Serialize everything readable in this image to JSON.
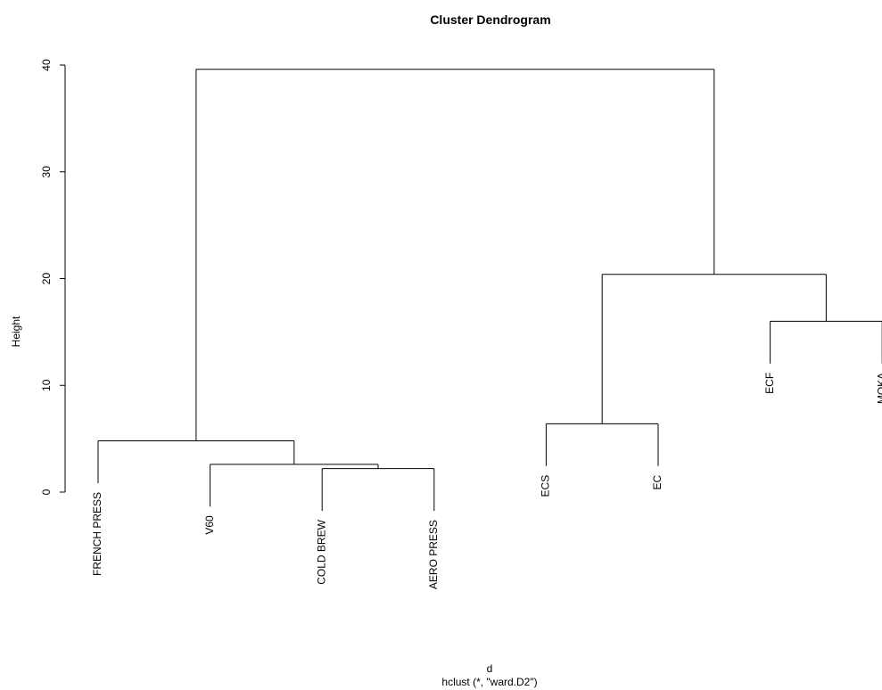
{
  "chart_data": {
    "type": "dendrogram",
    "title": "Cluster Dendrogram",
    "xlabel": "d",
    "subtitle": "hclust (*, \"ward.D2\")",
    "ylabel": "Height",
    "leaves": [
      "FRENCH PRESS",
      "V60",
      "COLD BREW",
      "AERO PRESS",
      "ECS",
      "EC",
      "ECF",
      "MOKA"
    ],
    "merges": [
      {
        "children": [
          -3,
          -4
        ],
        "height": 2.2
      },
      {
        "children": [
          -2,
          1
        ],
        "height": 2.6
      },
      {
        "children": [
          -1,
          2
        ],
        "height": 4.8
      },
      {
        "children": [
          -5,
          -6
        ],
        "height": 6.4
      },
      {
        "children": [
          -7,
          -8
        ],
        "height": 16.0
      },
      {
        "children": [
          4,
          5
        ],
        "height": 20.4
      },
      {
        "children": [
          3,
          6
        ],
        "height": 39.6
      }
    ],
    "hang": 0.1,
    "ylim": [
      0,
      40
    ],
    "yticks": [
      0,
      10,
      20,
      30,
      40
    ],
    "color": "#000000"
  }
}
